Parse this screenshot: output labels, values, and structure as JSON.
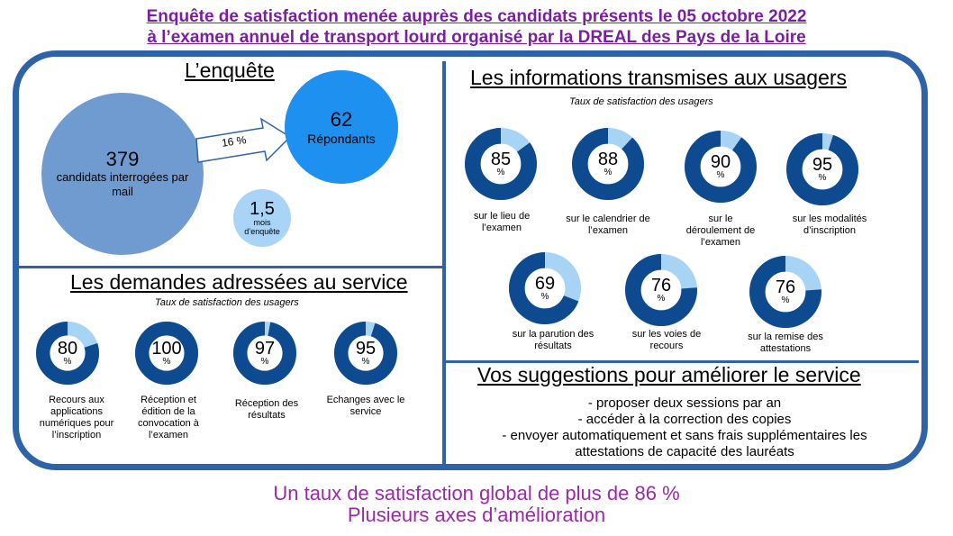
{
  "header": {
    "line1": "Enquête de satisfaction menée auprès des candidats présents le 05 octobre 2022",
    "line2": " à l’examen annuel de transport lourd organisé par la DREAL des Pays de la Loire"
  },
  "enquete": {
    "title": "L’enquête",
    "candidats_value": "379",
    "candidats_label": "candidats interrogées par mail",
    "arrow_label": "16 %",
    "repondants_value": "62",
    "repondants_label": "Répondants",
    "mois_value": "1,5",
    "mois_label": "mois d’enquête"
  },
  "demandes": {
    "title": "Les demandes adressées au service",
    "subtitle": "Taux de satisfaction des usagers",
    "items": [
      {
        "value": 80,
        "label": "Recours aux applications numériques pour l’inscription"
      },
      {
        "value": 100,
        "label": "Réception et édition de la convocation à l’examen"
      },
      {
        "value": 97,
        "label": "Réception des résultats"
      },
      {
        "value": 95,
        "label": "Echanges avec le service"
      }
    ]
  },
  "informations": {
    "title": "Les informations transmises aux usagers",
    "subtitle": "Taux de satisfaction des usagers",
    "items": [
      {
        "value": 85,
        "label": "sur le lieu de l’examen"
      },
      {
        "value": 88,
        "label": "sur le calendrier de l’examen"
      },
      {
        "value": 90,
        "label": "sur le déroulement de l’examen"
      },
      {
        "value": 95,
        "label": "sur les modalités d’inscription"
      },
      {
        "value": 69,
        "label": "sur la parution des résultats"
      },
      {
        "value": 76,
        "label": "sur les voies de recours"
      },
      {
        "value": 76,
        "label": "sur la remise des attestations"
      }
    ]
  },
  "suggestions": {
    "title": "Vos suggestions pour améliorer le service",
    "lines": [
      "- proposer deux sessions par an",
      "- accéder à la correction des copies",
      "- envoyer automatiquement et sans frais supplémentaires les",
      "attestations de capacité des lauréats"
    ]
  },
  "footer": {
    "line1": "Un taux de satisfaction global de plus de 86 %",
    "line2": "Plusieurs axes d’amélioration"
  },
  "pct_symbol": "%",
  "colors": {
    "frame": "#2f63a8",
    "donut_main": "#0d4a8f",
    "donut_rest": "#a7d3f5",
    "header": "#7a1fa2",
    "footer": "#9a2aa8",
    "big_circle": "#6f9bd1",
    "repondants_circle": "#1e90f0",
    "mois_circle": "#a9d4f7"
  }
}
